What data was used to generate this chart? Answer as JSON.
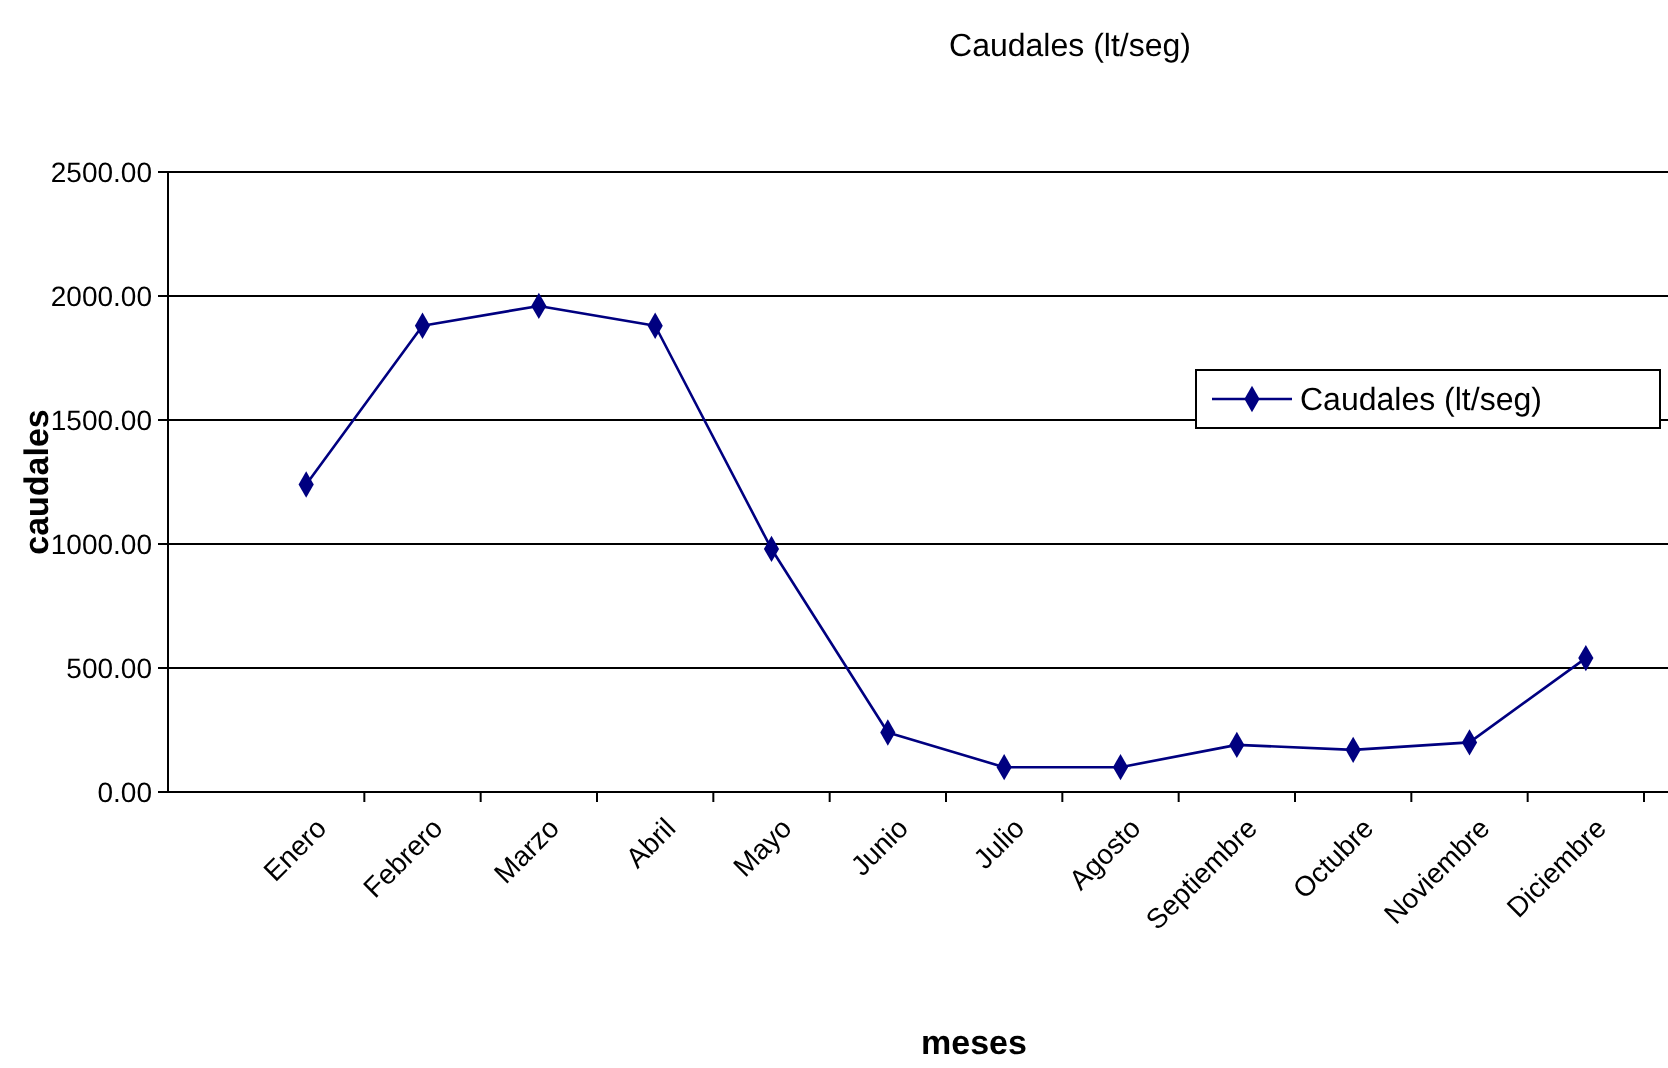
{
  "chart_data": {
    "type": "line",
    "title": "Caudales (lt/seg)",
    "xlabel": "meses",
    "ylabel": "caudales",
    "categories": [
      "Enero",
      "Febrero",
      "Marzo",
      "Abril",
      "Mayo",
      "Junio",
      "Julio",
      "Agosto",
      "Septiembre",
      "Octubre",
      "Noviembre",
      "Diciembre"
    ],
    "series": [
      {
        "name": "Caudales (lt/seg)",
        "color": "#000080",
        "values": [
          1240,
          1880,
          1960,
          1880,
          980,
          240,
          100,
          100,
          190,
          170,
          200,
          540
        ]
      }
    ],
    "ylim": [
      0,
      2500
    ],
    "yticks": [
      {
        "value": 0,
        "label": "0.00"
      },
      {
        "value": 500,
        "label": "500.00"
      },
      {
        "value": 1000,
        "label": "1000.00"
      },
      {
        "value": 1500,
        "label": "1500.00"
      },
      {
        "value": 2000,
        "label": "2000.00"
      },
      {
        "value": 2500,
        "label": "2500.00"
      }
    ],
    "grid": "y",
    "legend": "right",
    "marker": "diamond",
    "line_style": "solid"
  }
}
